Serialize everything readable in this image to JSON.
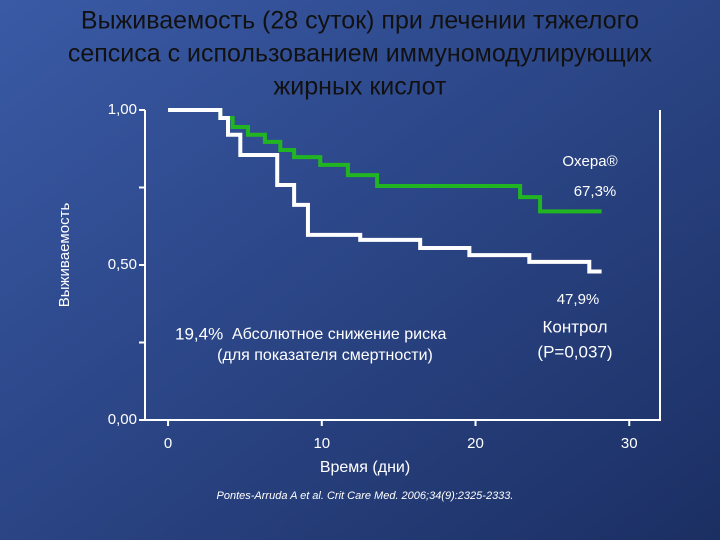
{
  "chart_data": {
    "type": "step",
    "title": [
      "Выживаемость (28 суток) при лечении тяжелого",
      "сепсиса с использованием иммуномодулирующих",
      "жирных кислот"
    ],
    "y_label": "Выживаемость",
    "x_label": "Время (дни)",
    "xlim": [
      -1.5,
      32
    ],
    "ylim": [
      0,
      1
    ],
    "xticks": [
      0,
      10,
      20,
      30
    ],
    "yticks": [
      {
        "value": 0,
        "label": "0,00"
      },
      {
        "value": 0.5,
        "label": "0,50"
      },
      {
        "value": 1,
        "label": "1,00"
      }
    ],
    "yminor": [
      0.25,
      0.75
    ],
    "series": [
      {
        "name": "Oxepa®",
        "color": "#22b522",
        "end_label": "67,3%",
        "x": [
          0,
          3.4,
          4.2,
          5.2,
          6.3,
          7.3,
          8.2,
          9.9,
          11.7,
          13.6,
          22.9,
          24.2,
          28.2
        ],
        "values": [
          1,
          0.974,
          0.945,
          0.92,
          0.897,
          0.871,
          0.848,
          0.823,
          0.79,
          0.755,
          0.719,
          0.673,
          0.673
        ]
      },
      {
        "name": "Контрол",
        "color": "#ffffff",
        "end_label": "47,9%",
        "x": [
          0,
          3.4,
          3.9,
          4.7,
          7.1,
          8.2,
          9.1,
          12.5,
          16.4,
          19.6,
          23.5,
          27.4,
          28.2
        ],
        "values": [
          1,
          0.974,
          0.92,
          0.855,
          0.758,
          0.694,
          0.597,
          0.581,
          0.555,
          0.532,
          0.51,
          0.479,
          0.479
        ]
      }
    ],
    "p_value": "(P=0,037)",
    "risk_value": "19,4%",
    "risk_text": "Абсолютное снижение риска",
    "risk_note": "(для показателя смертности)",
    "citation": "Pontes-Arruda A et al. Crit Care Med. 2006;34(9):2325-2333."
  }
}
